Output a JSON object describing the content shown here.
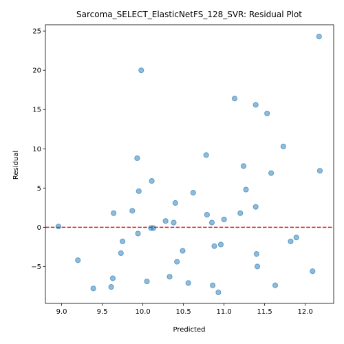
{
  "chart_data": {
    "type": "scatter",
    "title": "Sarcoma_SELECT_ElasticNetFS_128_SVR: Residual Plot",
    "xlabel": "Predicted",
    "ylabel": "Residual",
    "xlim": [
      8.8,
      12.35
    ],
    "ylim": [
      -9.7,
      25.8
    ],
    "xticks": [
      "9.0",
      "9.5",
      "10.0",
      "10.5",
      "11.0",
      "11.5",
      "12.0"
    ],
    "yticks": [
      "−5",
      "0",
      "5",
      "10",
      "15",
      "20",
      "25"
    ],
    "grid": false,
    "point_color": "#1f77b4",
    "reference_line": {
      "y": 0,
      "color": "#d62728",
      "style": "dashed"
    },
    "points": [
      {
        "x": 8.96,
        "y": 0.1
      },
      {
        "x": 9.2,
        "y": -4.2
      },
      {
        "x": 9.39,
        "y": -7.8
      },
      {
        "x": 9.61,
        "y": -7.6
      },
      {
        "x": 9.63,
        "y": -6.5
      },
      {
        "x": 9.64,
        "y": 1.8
      },
      {
        "x": 9.73,
        "y": -3.3
      },
      {
        "x": 9.75,
        "y": -1.8
      },
      {
        "x": 9.87,
        "y": 2.1
      },
      {
        "x": 9.93,
        "y": 8.8
      },
      {
        "x": 9.94,
        "y": -0.8
      },
      {
        "x": 9.95,
        "y": 4.6
      },
      {
        "x": 9.98,
        "y": 20.0
      },
      {
        "x": 10.05,
        "y": -6.9
      },
      {
        "x": 10.1,
        "y": -0.1
      },
      {
        "x": 10.11,
        "y": 5.9
      },
      {
        "x": 10.13,
        "y": -0.1
      },
      {
        "x": 10.28,
        "y": 0.8
      },
      {
        "x": 10.33,
        "y": -6.3
      },
      {
        "x": 10.38,
        "y": 0.6
      },
      {
        "x": 10.4,
        "y": 3.1
      },
      {
        "x": 10.42,
        "y": -4.4
      },
      {
        "x": 10.49,
        "y": -3.0
      },
      {
        "x": 10.56,
        "y": -7.1
      },
      {
        "x": 10.62,
        "y": 4.4
      },
      {
        "x": 10.78,
        "y": 9.2
      },
      {
        "x": 10.79,
        "y": 1.6
      },
      {
        "x": 10.85,
        "y": 0.6
      },
      {
        "x": 10.86,
        "y": -7.4
      },
      {
        "x": 10.88,
        "y": -2.4
      },
      {
        "x": 10.93,
        "y": -8.3
      },
      {
        "x": 10.96,
        "y": -2.2
      },
      {
        "x": 11.0,
        "y": 1.0
      },
      {
        "x": 11.13,
        "y": 16.4
      },
      {
        "x": 11.2,
        "y": 1.8
      },
      {
        "x": 11.24,
        "y": 7.8
      },
      {
        "x": 11.27,
        "y": 4.8
      },
      {
        "x": 11.39,
        "y": 15.6
      },
      {
        "x": 11.39,
        "y": 2.6
      },
      {
        "x": 11.4,
        "y": -3.4
      },
      {
        "x": 11.41,
        "y": -5.0
      },
      {
        "x": 11.53,
        "y": 14.5
      },
      {
        "x": 11.58,
        "y": 6.9
      },
      {
        "x": 11.63,
        "y": -7.4
      },
      {
        "x": 11.73,
        "y": 10.3
      },
      {
        "x": 11.82,
        "y": -1.8
      },
      {
        "x": 11.89,
        "y": -1.3
      },
      {
        "x": 12.09,
        "y": -5.6
      },
      {
        "x": 12.17,
        "y": 24.3
      },
      {
        "x": 12.18,
        "y": 7.2
      }
    ]
  }
}
